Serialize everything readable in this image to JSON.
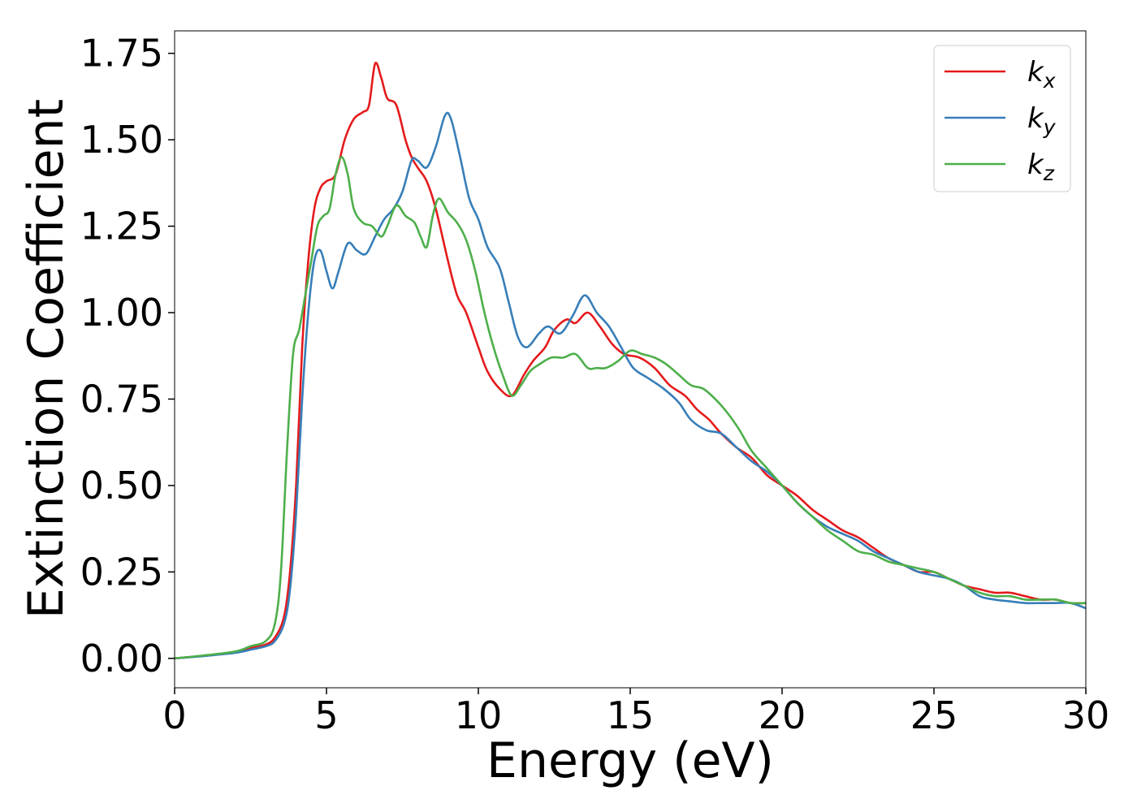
{
  "chart_data": {
    "type": "line",
    "title": "",
    "xlabel": "Energy (eV)",
    "ylabel": "Extinction Coefficient",
    "xlim": [
      0,
      30
    ],
    "ylim": [
      -0.085,
      1.815
    ],
    "x_ticks": [
      0,
      5,
      10,
      15,
      20,
      25,
      30
    ],
    "x_tick_labels": [
      "0",
      "5",
      "10",
      "15",
      "20",
      "25",
      "30"
    ],
    "y_ticks": [
      0,
      0.25,
      0.5,
      0.75,
      1.0,
      1.25,
      1.5,
      1.75
    ],
    "y_tick_labels": [
      "0.00",
      "0.25",
      "0.50",
      "0.75",
      "1.00",
      "1.25",
      "1.50",
      "1.75"
    ],
    "grid": false,
    "legend_position": "top-right",
    "series": [
      {
        "name": "k",
        "subscript": "x",
        "color": "#e41a1c",
        "points": [
          [
            0,
            0
          ],
          [
            1,
            0.008
          ],
          [
            2,
            0.018
          ],
          [
            2.5,
            0.03
          ],
          [
            3,
            0.04
          ],
          [
            3.3,
            0.06
          ],
          [
            3.6,
            0.12
          ],
          [
            3.8,
            0.25
          ],
          [
            4.0,
            0.5
          ],
          [
            4.2,
            0.9
          ],
          [
            4.4,
            1.15
          ],
          [
            4.6,
            1.3
          ],
          [
            4.8,
            1.36
          ],
          [
            5.0,
            1.38
          ],
          [
            5.3,
            1.4
          ],
          [
            5.6,
            1.5
          ],
          [
            5.9,
            1.56
          ],
          [
            6.2,
            1.58
          ],
          [
            6.4,
            1.6
          ],
          [
            6.6,
            1.72
          ],
          [
            6.8,
            1.68
          ],
          [
            7.0,
            1.62
          ],
          [
            7.3,
            1.6
          ],
          [
            7.6,
            1.5
          ],
          [
            7.8,
            1.45
          ],
          [
            8.0,
            1.42
          ],
          [
            8.3,
            1.38
          ],
          [
            8.6,
            1.3
          ],
          [
            9.0,
            1.15
          ],
          [
            9.3,
            1.05
          ],
          [
            9.6,
            1.0
          ],
          [
            10.0,
            0.9
          ],
          [
            10.3,
            0.83
          ],
          [
            10.7,
            0.78
          ],
          [
            11.1,
            0.76
          ],
          [
            11.5,
            0.82
          ],
          [
            11.8,
            0.86
          ],
          [
            12.2,
            0.9
          ],
          [
            12.5,
            0.95
          ],
          [
            12.9,
            0.98
          ],
          [
            13.2,
            0.97
          ],
          [
            13.6,
            1.0
          ],
          [
            14.0,
            0.96
          ],
          [
            14.4,
            0.91
          ],
          [
            14.8,
            0.88
          ],
          [
            15.3,
            0.87
          ],
          [
            15.8,
            0.84
          ],
          [
            16.3,
            0.79
          ],
          [
            16.8,
            0.76
          ],
          [
            17.2,
            0.72
          ],
          [
            17.6,
            0.69
          ],
          [
            18.0,
            0.65
          ],
          [
            18.5,
            0.61
          ],
          [
            19.0,
            0.58
          ],
          [
            19.5,
            0.53
          ],
          [
            20.0,
            0.5
          ],
          [
            20.5,
            0.47
          ],
          [
            21.0,
            0.43
          ],
          [
            21.5,
            0.4
          ],
          [
            22.0,
            0.37
          ],
          [
            22.5,
            0.35
          ],
          [
            23.0,
            0.32
          ],
          [
            23.5,
            0.29
          ],
          [
            24.0,
            0.27
          ],
          [
            24.5,
            0.25
          ],
          [
            25.0,
            0.25
          ],
          [
            25.5,
            0.23
          ],
          [
            26.0,
            0.21
          ],
          [
            26.5,
            0.2
          ],
          [
            27.0,
            0.19
          ],
          [
            27.5,
            0.19
          ],
          [
            28.0,
            0.18
          ],
          [
            28.5,
            0.17
          ],
          [
            29.0,
            0.17
          ],
          [
            29.5,
            0.16
          ],
          [
            30.0,
            0.16
          ]
        ]
      },
      {
        "name": "k",
        "subscript": "y",
        "color": "#377eb8",
        "points": [
          [
            0,
            0
          ],
          [
            1,
            0.007
          ],
          [
            2,
            0.016
          ],
          [
            2.5,
            0.025
          ],
          [
            3,
            0.035
          ],
          [
            3.3,
            0.05
          ],
          [
            3.6,
            0.1
          ],
          [
            3.8,
            0.2
          ],
          [
            4.0,
            0.42
          ],
          [
            4.2,
            0.75
          ],
          [
            4.4,
            1.0
          ],
          [
            4.6,
            1.15
          ],
          [
            4.8,
            1.18
          ],
          [
            5.0,
            1.12
          ],
          [
            5.2,
            1.07
          ],
          [
            5.4,
            1.12
          ],
          [
            5.7,
            1.2
          ],
          [
            6.0,
            1.18
          ],
          [
            6.3,
            1.17
          ],
          [
            6.6,
            1.22
          ],
          [
            6.9,
            1.27
          ],
          [
            7.2,
            1.3
          ],
          [
            7.5,
            1.35
          ],
          [
            7.8,
            1.44
          ],
          [
            8.0,
            1.44
          ],
          [
            8.3,
            1.42
          ],
          [
            8.6,
            1.48
          ],
          [
            8.9,
            1.57
          ],
          [
            9.1,
            1.56
          ],
          [
            9.4,
            1.45
          ],
          [
            9.7,
            1.33
          ],
          [
            10.0,
            1.27
          ],
          [
            10.3,
            1.19
          ],
          [
            10.7,
            1.13
          ],
          [
            11.0,
            1.03
          ],
          [
            11.3,
            0.93
          ],
          [
            11.6,
            0.9
          ],
          [
            12.0,
            0.94
          ],
          [
            12.3,
            0.96
          ],
          [
            12.7,
            0.94
          ],
          [
            13.1,
            0.99
          ],
          [
            13.5,
            1.05
          ],
          [
            13.9,
            1.0
          ],
          [
            14.3,
            0.96
          ],
          [
            14.7,
            0.9
          ],
          [
            15.1,
            0.84
          ],
          [
            15.6,
            0.81
          ],
          [
            16.1,
            0.78
          ],
          [
            16.6,
            0.74
          ],
          [
            17.0,
            0.69
          ],
          [
            17.5,
            0.66
          ],
          [
            18.0,
            0.65
          ],
          [
            18.5,
            0.61
          ],
          [
            19.0,
            0.57
          ],
          [
            19.5,
            0.54
          ],
          [
            20.0,
            0.5
          ],
          [
            20.5,
            0.45
          ],
          [
            21.0,
            0.41
          ],
          [
            21.5,
            0.38
          ],
          [
            22.0,
            0.36
          ],
          [
            22.5,
            0.34
          ],
          [
            23.0,
            0.31
          ],
          [
            23.5,
            0.29
          ],
          [
            24.0,
            0.27
          ],
          [
            24.5,
            0.25
          ],
          [
            25.0,
            0.24
          ],
          [
            25.5,
            0.23
          ],
          [
            26.0,
            0.21
          ],
          [
            26.5,
            0.18
          ],
          [
            27.0,
            0.17
          ],
          [
            27.5,
            0.165
          ],
          [
            28.0,
            0.16
          ],
          [
            28.5,
            0.16
          ],
          [
            29.0,
            0.16
          ],
          [
            29.5,
            0.16
          ],
          [
            30.0,
            0.145
          ]
        ]
      },
      {
        "name": "k",
        "subscript": "z",
        "color": "#4daf4a",
        "points": [
          [
            0,
            0
          ],
          [
            1,
            0.009
          ],
          [
            2,
            0.02
          ],
          [
            2.5,
            0.035
          ],
          [
            3,
            0.05
          ],
          [
            3.3,
            0.1
          ],
          [
            3.5,
            0.25
          ],
          [
            3.7,
            0.6
          ],
          [
            3.9,
            0.88
          ],
          [
            4.1,
            0.95
          ],
          [
            4.3,
            1.05
          ],
          [
            4.5,
            1.15
          ],
          [
            4.7,
            1.25
          ],
          [
            4.9,
            1.28
          ],
          [
            5.1,
            1.3
          ],
          [
            5.3,
            1.4
          ],
          [
            5.5,
            1.45
          ],
          [
            5.7,
            1.4
          ],
          [
            5.9,
            1.3
          ],
          [
            6.2,
            1.26
          ],
          [
            6.5,
            1.25
          ],
          [
            6.8,
            1.22
          ],
          [
            7.0,
            1.25
          ],
          [
            7.3,
            1.31
          ],
          [
            7.6,
            1.28
          ],
          [
            7.9,
            1.26
          ],
          [
            8.1,
            1.22
          ],
          [
            8.3,
            1.19
          ],
          [
            8.5,
            1.28
          ],
          [
            8.7,
            1.33
          ],
          [
            9.0,
            1.29
          ],
          [
            9.3,
            1.26
          ],
          [
            9.6,
            1.21
          ],
          [
            9.9,
            1.12
          ],
          [
            10.2,
            1.0
          ],
          [
            10.5,
            0.9
          ],
          [
            10.8,
            0.82
          ],
          [
            11.1,
            0.76
          ],
          [
            11.4,
            0.79
          ],
          [
            11.7,
            0.83
          ],
          [
            12.0,
            0.85
          ],
          [
            12.4,
            0.87
          ],
          [
            12.8,
            0.87
          ],
          [
            13.2,
            0.88
          ],
          [
            13.6,
            0.84
          ],
          [
            13.9,
            0.84
          ],
          [
            14.2,
            0.84
          ],
          [
            14.6,
            0.86
          ],
          [
            15.0,
            0.89
          ],
          [
            15.4,
            0.88
          ],
          [
            15.8,
            0.87
          ],
          [
            16.2,
            0.85
          ],
          [
            16.6,
            0.82
          ],
          [
            17.0,
            0.79
          ],
          [
            17.4,
            0.78
          ],
          [
            17.8,
            0.75
          ],
          [
            18.2,
            0.71
          ],
          [
            18.6,
            0.66
          ],
          [
            19.0,
            0.6
          ],
          [
            19.5,
            0.55
          ],
          [
            20.0,
            0.5
          ],
          [
            20.5,
            0.45
          ],
          [
            21.0,
            0.41
          ],
          [
            21.5,
            0.37
          ],
          [
            22.0,
            0.34
          ],
          [
            22.5,
            0.31
          ],
          [
            23.0,
            0.3
          ],
          [
            23.5,
            0.28
          ],
          [
            24.0,
            0.27
          ],
          [
            24.5,
            0.26
          ],
          [
            25.0,
            0.25
          ],
          [
            25.5,
            0.23
          ],
          [
            26.0,
            0.21
          ],
          [
            26.5,
            0.19
          ],
          [
            27.0,
            0.18
          ],
          [
            27.5,
            0.18
          ],
          [
            28.0,
            0.17
          ],
          [
            28.5,
            0.17
          ],
          [
            29.0,
            0.17
          ],
          [
            29.5,
            0.16
          ],
          [
            30.0,
            0.16
          ]
        ]
      }
    ]
  }
}
